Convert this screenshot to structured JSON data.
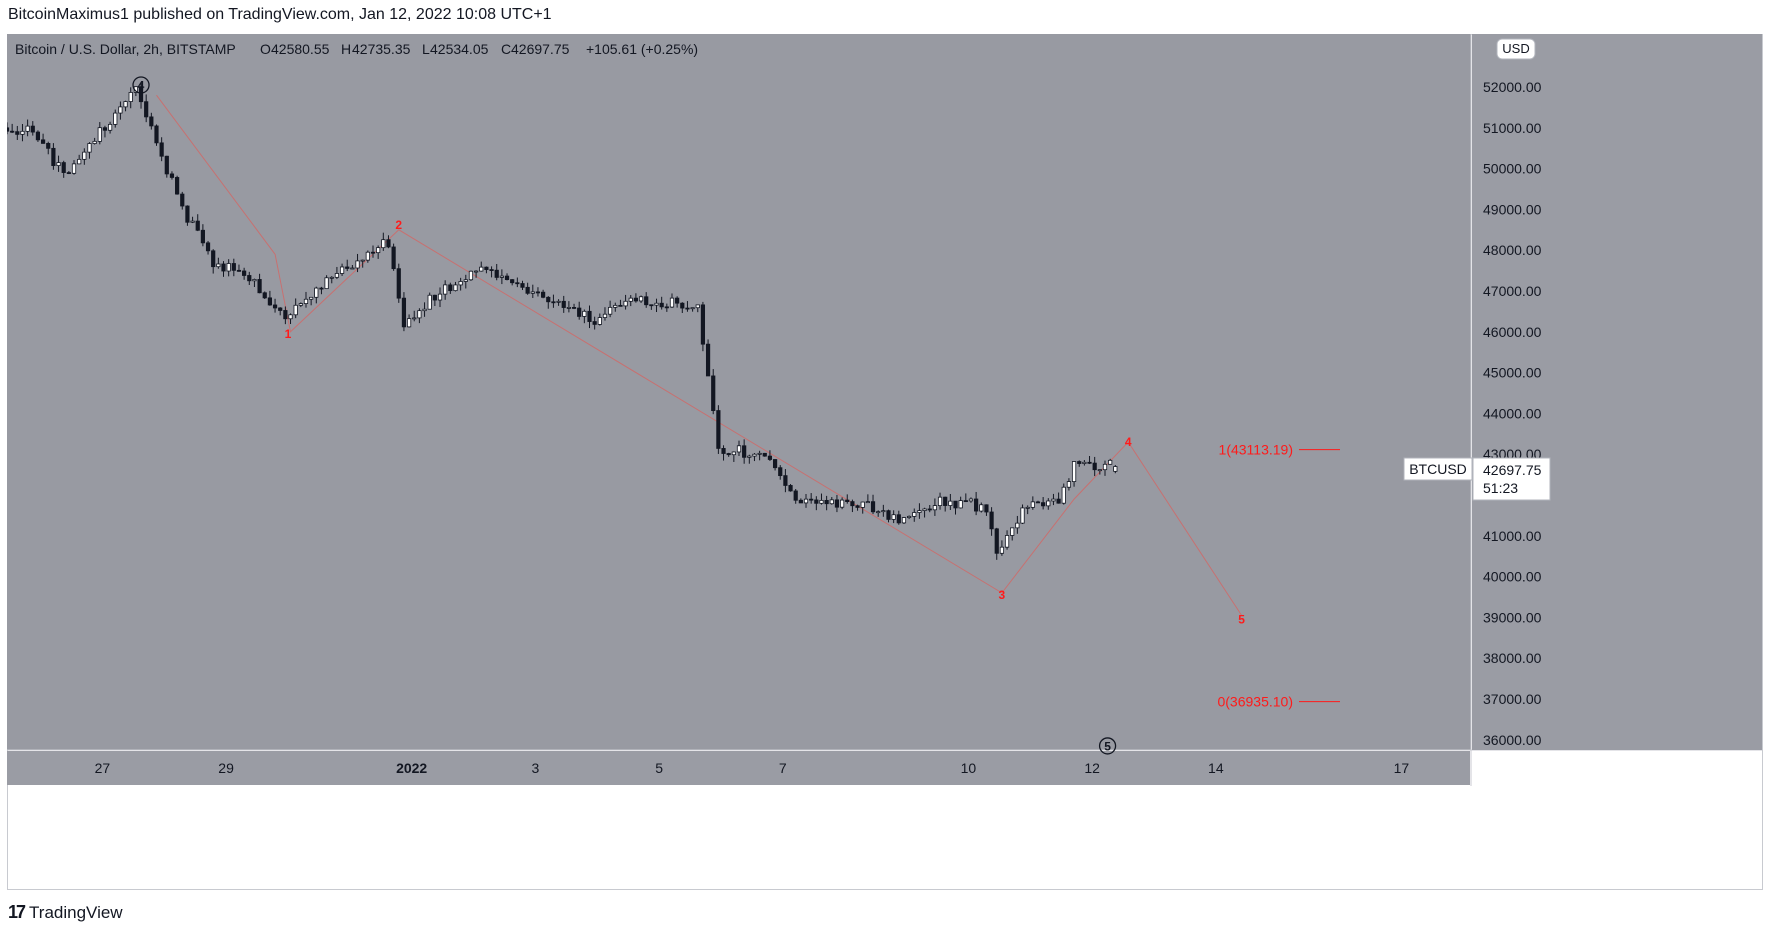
{
  "header": {
    "publisher_line": "BitcoinMaximus1 published on TradingView.com, Jan 12, 2022 10:08 UTC+1"
  },
  "symbol_bar": {
    "name": "Bitcoin / U.S. Dollar, 2h, BITSTAMP",
    "o_label": "O",
    "o_value": "42580.55",
    "h_label": "H",
    "h_value": "42735.35",
    "l_label": "L",
    "l_value": "42534.05",
    "c_label": "C",
    "c_value": "42697.75",
    "change": "+105.61 (+0.25%)"
  },
  "currency_badge": "USD",
  "price_tag": {
    "symbol": "BTCUSD",
    "price": "42697.75",
    "countdown": "51:23"
  },
  "fib_levels": [
    {
      "label": "1(43113.19)",
      "price": 43113.19
    },
    {
      "label": "0(36935.10)",
      "price": 36935.1
    }
  ],
  "wave_labels": [
    {
      "text": "1",
      "style": "red",
      "date": "Dec 30 00:00",
      "price": 45950
    },
    {
      "text": "2",
      "style": "red",
      "date": "Dec 31 19:00",
      "price": 48620
    },
    {
      "text": "3",
      "style": "red",
      "date": "Jan 10 13:00",
      "price": 39550
    },
    {
      "text": "4",
      "style": "red",
      "date": "Jan 12 14:00",
      "price": 43300
    },
    {
      "text": "5",
      "style": "red",
      "date": "Jan 14 10:00",
      "price": 38950
    },
    {
      "text": "4",
      "style": "circled",
      "date": "Dec 27 15:00",
      "price": 52050
    },
    {
      "text": "5",
      "style": "circled",
      "date": "Jan 12 06:00",
      "price": 35850
    }
  ],
  "colors": {
    "background": "#989aa2",
    "wave_line": "#c87070",
    "wave_text": "#ff1a1a",
    "candle": "#131722"
  },
  "chart_data": {
    "type": "candlestick",
    "title": "Bitcoin / U.S. Dollar, 2h, BITSTAMP",
    "interval": "2h",
    "x_axis": {
      "tick_labels": [
        "27",
        "29",
        "2022",
        "3",
        "5",
        "7",
        "10",
        "12",
        "14",
        "17"
      ],
      "tick_dates": [
        "Dec 27",
        "Dec 29",
        "Jan 1",
        "Jan 3",
        "Jan 5",
        "Jan 7",
        "Jan 10",
        "Jan 12",
        "Jan 14",
        "Jan 17"
      ],
      "range": [
        "Dec 25 11:00",
        "Jan 18 03:00"
      ]
    },
    "y_axis": {
      "ylim": [
        35750,
        53300
      ],
      "tick_labels": [
        "52000.00",
        "51000.00",
        "50000.00",
        "49000.00",
        "48000.00",
        "47000.00",
        "46000.00",
        "45000.00",
        "44000.00",
        "43000.00",
        "42000.00",
        "41000.00",
        "40000.00",
        "39000.00",
        "38000.00",
        "37000.00",
        "36000.00"
      ],
      "ticks": [
        52000,
        51000,
        50000,
        49000,
        48000,
        47000,
        46000,
        45000,
        44000,
        43000,
        42000,
        41000,
        40000,
        39000,
        38000,
        37000,
        36000
      ],
      "side": "right"
    },
    "grid": false,
    "price_path_anchors": [
      {
        "date": "Dec 25 11:00",
        "price": 51000
      },
      {
        "date": "Dec 26 01:00",
        "price": 50850
      },
      {
        "date": "Dec 26 11:00",
        "price": 49800
      },
      {
        "date": "Dec 27 01:00",
        "price": 50900
      },
      {
        "date": "Dec 27 15:00",
        "price": 51900
      },
      {
        "date": "Dec 28 09:00",
        "price": 49000
      },
      {
        "date": "Dec 28 21:00",
        "price": 47700
      },
      {
        "date": "Dec 29 09:00",
        "price": 47500
      },
      {
        "date": "Dec 30 00:00",
        "price": 46300
      },
      {
        "date": "Dec 30 19:00",
        "price": 47300
      },
      {
        "date": "Dec 31 17:00",
        "price": 48200
      },
      {
        "date": "Dec 31 23:00",
        "price": 46200
      },
      {
        "date": "Jan 1 13:00",
        "price": 47000
      },
      {
        "date": "Jan 2 03:00",
        "price": 47500
      },
      {
        "date": "Jan 3 01:00",
        "price": 47000
      },
      {
        "date": "Jan 4 01:00",
        "price": 46300
      },
      {
        "date": "Jan 4 19:00",
        "price": 46800
      },
      {
        "date": "Jan 5 17:00",
        "price": 46600
      },
      {
        "date": "Jan 6 01:00",
        "price": 43100
      },
      {
        "date": "Jan 6 21:00",
        "price": 43000
      },
      {
        "date": "Jan 7 07:00",
        "price": 41800
      },
      {
        "date": "Jan 8 09:00",
        "price": 41800
      },
      {
        "date": "Jan 9 01:00",
        "price": 41400
      },
      {
        "date": "Jan 9 15:00",
        "price": 41900
      },
      {
        "date": "Jan 10 09:00",
        "price": 41700
      },
      {
        "date": "Jan 10 13:00",
        "price": 40600
      },
      {
        "date": "Jan 11 01:00",
        "price": 41800
      },
      {
        "date": "Jan 11 13:00",
        "price": 41800
      },
      {
        "date": "Jan 11 19:00",
        "price": 42800
      },
      {
        "date": "Jan 12 09:00",
        "price": 42700
      }
    ],
    "last_candle": {
      "open": 42580.55,
      "high": 42735.35,
      "low": 42534.05,
      "close": 42697.75
    },
    "wave_path": {
      "points": [
        {
          "date": "Dec 27 21:00",
          "price": 51800
        },
        {
          "date": "Dec 29 19:00",
          "price": 47900
        },
        {
          "date": "Dec 30 01:00",
          "price": 46000
        },
        {
          "date": "Dec 31 19:00",
          "price": 48500
        },
        {
          "date": "Jan 10 13:00",
          "price": 39600
        },
        {
          "date": "Jan 11 17:00",
          "price": 41900
        },
        {
          "date": "Jan 12 14:00",
          "price": 43300
        },
        {
          "date": "Jan 14 10:00",
          "price": 39050
        }
      ]
    }
  },
  "footer": {
    "brand": "TradingView",
    "brand_mark": "17"
  }
}
